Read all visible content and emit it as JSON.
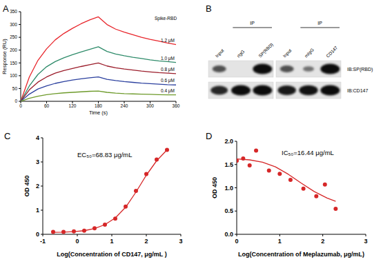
{
  "chart_data": [
    {
      "type": "line",
      "title": "A",
      "annotations": [
        "Spike-RBD"
      ],
      "xlabel": "Time (s)",
      "ylabel": "Response (RU)",
      "x": [
        0,
        20,
        40,
        60,
        80,
        100,
        120,
        140,
        160,
        180,
        200,
        220,
        240,
        260,
        280,
        300,
        320,
        340,
        360
      ],
      "xlim": [
        0,
        360
      ],
      "xticks": [
        0,
        60,
        120,
        180,
        240,
        300,
        360
      ],
      "ylim": [
        0,
        350
      ],
      "yticks": [
        0,
        50,
        100,
        150,
        200,
        250,
        300,
        350
      ],
      "series": [
        {
          "name": "1.2 μM",
          "color": "#e8252b",
          "values": [
            0,
            95,
            160,
            205,
            240,
            265,
            285,
            303,
            318,
            330,
            300,
            282,
            270,
            260,
            250,
            242,
            235,
            228,
            222
          ]
        },
        {
          "name": "1.0 μM",
          "color": "#2e8b6a",
          "values": [
            0,
            60,
            105,
            135,
            155,
            170,
            182,
            193,
            203,
            213,
            195,
            185,
            178,
            172,
            167,
            162,
            158,
            155,
            152
          ]
        },
        {
          "name": "0.8 μM",
          "color": "#9b1c2a",
          "values": [
            0,
            45,
            75,
            95,
            110,
            120,
            128,
            136,
            143,
            150,
            138,
            131,
            126,
            122,
            118,
            115,
            112,
            110,
            108
          ]
        },
        {
          "name": "0.6 μM",
          "color": "#2a3f9e",
          "values": [
            0,
            28,
            48,
            60,
            70,
            77,
            83,
            88,
            92,
            95,
            86,
            81,
            77,
            74,
            71,
            69,
            67,
            65,
            64
          ]
        },
        {
          "name": "0.4 μM",
          "color": "#6d9a2a",
          "values": [
            0,
            12,
            20,
            26,
            30,
            33,
            35,
            37,
            39,
            40,
            35,
            32,
            30,
            29,
            28,
            27,
            26,
            25,
            25
          ]
        }
      ]
    },
    {
      "type": "scatter",
      "title": "C",
      "annotations": [
        "EC₅₀=68.83 μg/mL"
      ],
      "xlabel": "Log(Concentration of CD147, μg/mL )",
      "ylabel": "OD 450",
      "xlim": [
        -1,
        3
      ],
      "xticks": [
        -1,
        0,
        1,
        2,
        3
      ],
      "ylim": [
        0,
        4
      ],
      "yticks": [
        0,
        1,
        2,
        3,
        4
      ],
      "series": [
        {
          "type": "scatter",
          "color": "#d62728",
          "marker": "circle",
          "x": [
            -0.7,
            -0.4,
            -0.1,
            0.2,
            0.5,
            0.8,
            1.1,
            1.4,
            1.7,
            2.0,
            2.3,
            2.6
          ],
          "values": [
            0.1,
            0.1,
            0.12,
            0.15,
            0.25,
            0.4,
            0.65,
            1.15,
            1.8,
            2.5,
            3.1,
            3.5
          ]
        },
        {
          "type": "line",
          "color": "#d62728",
          "line_style": "solid",
          "x": [
            -0.7,
            -0.4,
            -0.1,
            0.2,
            0.5,
            0.8,
            1.1,
            1.4,
            1.7,
            2.0,
            2.3,
            2.6
          ],
          "values": [
            0.08,
            0.09,
            0.11,
            0.15,
            0.24,
            0.4,
            0.68,
            1.12,
            1.75,
            2.45,
            3.05,
            3.5
          ]
        }
      ]
    },
    {
      "type": "scatter",
      "title": "D",
      "annotations": [
        "IC₅₀=16.44 μg/mL"
      ],
      "xlabel": "Log(Concentration of Meplazumab, μg/mL)",
      "ylabel": "OD 450",
      "xlim": [
        0,
        3
      ],
      "xticks": [
        0,
        1,
        2,
        3
      ],
      "ylim": [
        0,
        2
      ],
      "yticks": [
        {
          "value": 0,
          "label": "0.0"
        },
        {
          "value": 0.5,
          "label": "0.5"
        },
        {
          "value": 1,
          "label": "1.0"
        },
        {
          "value": 1.5,
          "label": "1.5"
        },
        {
          "value": 2,
          "label": "2.0"
        }
      ],
      "series": [
        {
          "type": "scatter",
          "color": "#d62728",
          "marker": "circle",
          "x": [
            0,
            0.15,
            0.3,
            0.45,
            0.75,
            1.0,
            1.25,
            1.55,
            1.85,
            2.05,
            2.3
          ],
          "values": [
            1.58,
            1.63,
            1.48,
            1.8,
            1.37,
            1.3,
            1.17,
            0.98,
            0.82,
            1.07,
            0.55
          ]
        },
        {
          "type": "line",
          "color": "#d62728",
          "line_style": "solid",
          "x": [
            0,
            0.3,
            0.6,
            0.9,
            1.2,
            1.5,
            1.8,
            2.1,
            2.3
          ],
          "values": [
            1.62,
            1.6,
            1.55,
            1.45,
            1.29,
            1.1,
            0.92,
            0.78,
            0.71
          ]
        }
      ]
    }
  ],
  "blot": {
    "title": "B",
    "groups": [
      {
        "label": "IP",
        "lanes": [
          "Input",
          "rIgG",
          "SP(RBD)"
        ]
      },
      {
        "label": "IP",
        "lanes": [
          "Input",
          "mIgG",
          "CD147"
        ]
      }
    ],
    "rows": [
      "IB:SP(RBD)",
      "IB:CD147"
    ]
  }
}
